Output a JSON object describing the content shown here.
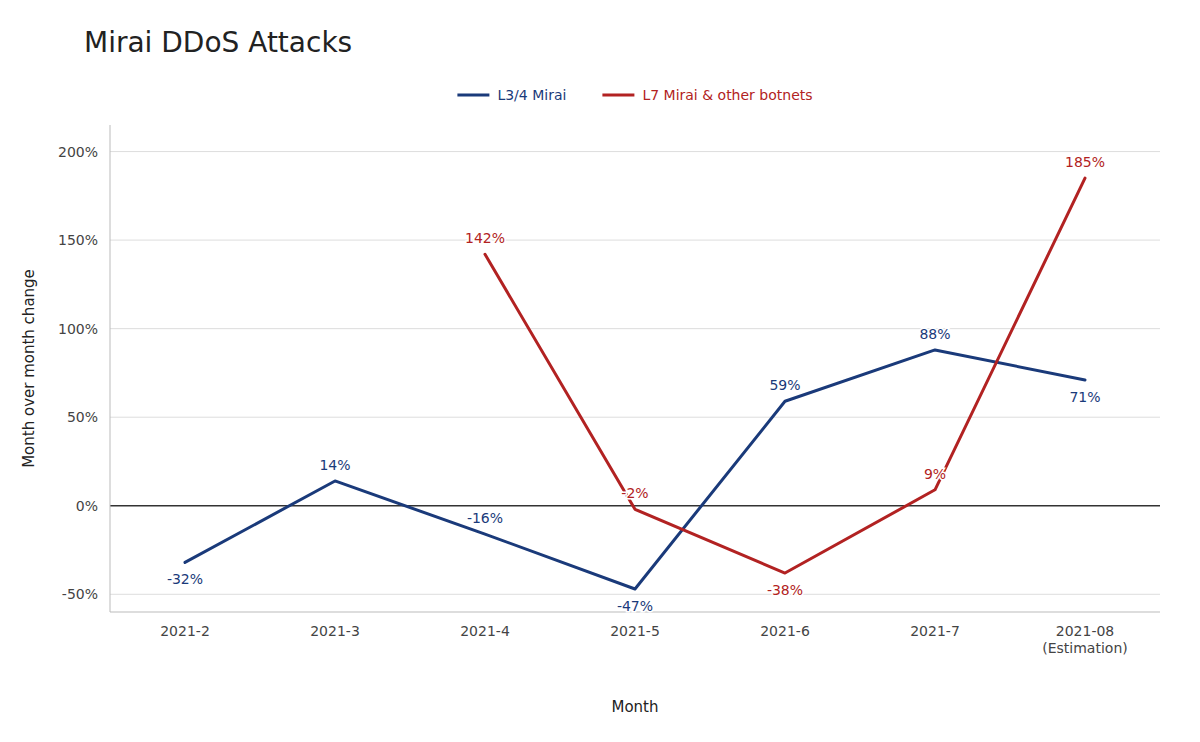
{
  "chart_data": {
    "type": "line",
    "title": "Mirai DDoS Attacks",
    "xlabel": "Month",
    "ylabel": "Month over month change",
    "categories": [
      "2021-2",
      "2021-3",
      "2021-4",
      "2021-5",
      "2021-6",
      "2021-7",
      "2021-08\n(Estimation)"
    ],
    "series": [
      {
        "name": "L3/4 Mirai",
        "color": "#1a3a7a",
        "values": [
          -32,
          14,
          -16,
          -47,
          59,
          88,
          71
        ],
        "value_labels": [
          "-32%",
          "14%",
          "-16%",
          "-47%",
          "59%",
          "88%",
          "71%"
        ]
      },
      {
        "name": "L7 Mirai & other botnets",
        "color": "#b22222",
        "values": [
          null,
          null,
          142,
          -2,
          -38,
          9,
          185
        ],
        "value_labels": [
          null,
          null,
          "142%",
          "-2%",
          "-38%",
          "9%",
          "185%"
        ]
      }
    ],
    "ylim": [
      -60,
      215
    ],
    "yticks": [
      {
        "value": -50,
        "label": "-50%"
      },
      {
        "value": 0,
        "label": "0%"
      },
      {
        "value": 50,
        "label": "50%"
      },
      {
        "value": 100,
        "label": "100%"
      },
      {
        "value": 150,
        "label": "150%"
      },
      {
        "value": 200,
        "label": "200%"
      }
    ],
    "grid": true,
    "legend": "top",
    "data_labels": true
  }
}
